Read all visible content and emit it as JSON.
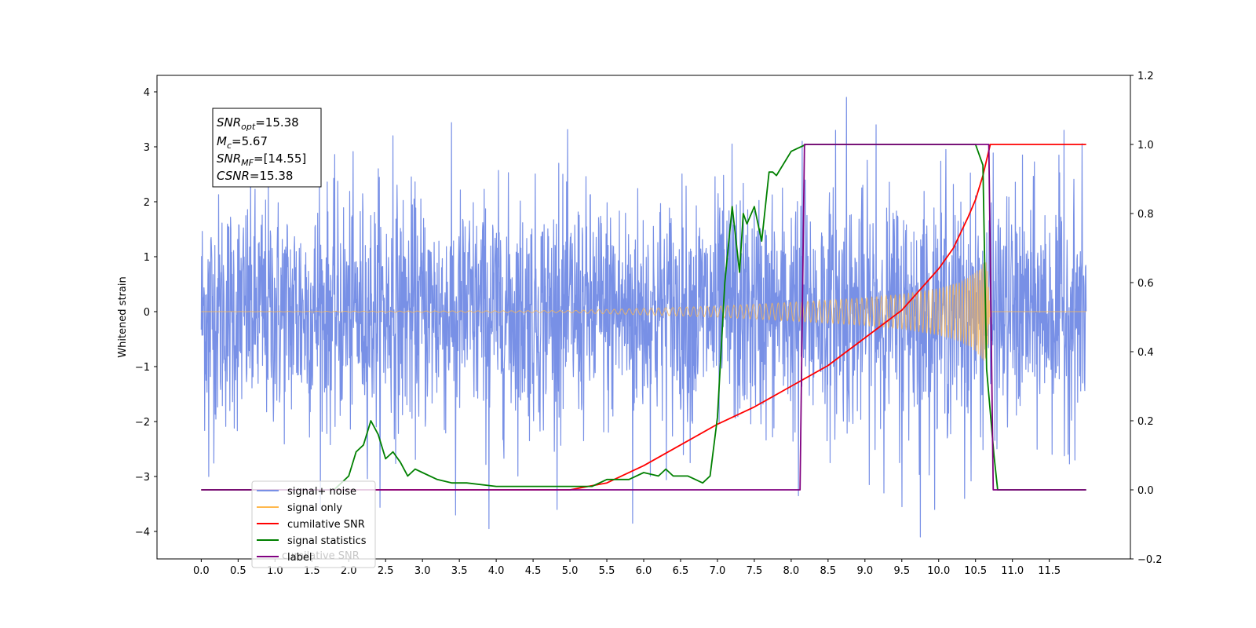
{
  "chart_data": {
    "type": "line",
    "title": "",
    "xlabel": "",
    "ylabel": "Whitened strain",
    "y2label": "",
    "xlim": [
      -0.6,
      12.6
    ],
    "ylim": [
      -4.5,
      4.3
    ],
    "y2lim": [
      -0.2,
      1.2
    ],
    "xticks": [
      "0.0",
      "0.5",
      "1.0",
      "1.5",
      "2.0",
      "2.5",
      "3.0",
      "3.5",
      "4.0",
      "4.5",
      "5.0",
      "5.5",
      "6.0",
      "6.5",
      "7.0",
      "7.5",
      "8.0",
      "8.5",
      "9.0",
      "9.5",
      "10.0",
      "10.5",
      "11.0",
      "11.5"
    ],
    "yticks": [
      "4",
      "3",
      "2",
      "1",
      "0",
      "−1",
      "−2",
      "−3",
      "−4"
    ],
    "y2ticks": [
      "1.2",
      "1.0",
      "0.8",
      "0.6",
      "0.4",
      "0.2",
      "0.0",
      "−0.2"
    ],
    "grid": false,
    "legend_position": "lower-left",
    "annotation": {
      "lines": [
        {
          "main": "SNR",
          "sub": "opt",
          "rest": "=15.38"
        },
        {
          "main": "M",
          "sub": "c",
          "rest": "=5.67"
        },
        {
          "main": "SNR",
          "sub": "MF",
          "rest": "=[14.55]"
        },
        {
          "main": "CSNR",
          "sub": "",
          "rest": "=15.38"
        }
      ]
    },
    "series": [
      {
        "name": "signal+ noise",
        "axis": "left",
        "color": "#7890e6",
        "kind": "noise",
        "x_range": [
          0.0,
          12.0
        ],
        "sigma": 1.05,
        "spikes": [
          [
            1.6,
            2.4
          ],
          [
            2.4,
            2.6
          ],
          [
            2.6,
            3.2
          ],
          [
            3.45,
            3.6
          ],
          [
            3.9,
            3.55
          ],
          [
            4.85,
            2.7
          ],
          [
            7.2,
            3.05
          ],
          [
            8.15,
            3.1
          ],
          [
            8.6,
            3.3
          ],
          [
            8.75,
            3.9
          ],
          [
            9.15,
            3.4
          ],
          [
            10.1,
            2.95
          ],
          [
            11.7,
            3.3
          ],
          [
            3.9,
            -3.95
          ],
          [
            3.45,
            -3.7
          ],
          [
            5.85,
            -3.85
          ],
          [
            8.1,
            -3.35
          ],
          [
            9.5,
            -3.55
          ],
          [
            9.75,
            -4.1
          ],
          [
            10.35,
            -3.4
          ],
          [
            0.1,
            -3.0
          ]
        ]
      },
      {
        "name": "signal only",
        "axis": "left",
        "color": "#ffb84d",
        "kind": "chirp",
        "x_range": [
          0.0,
          12.0
        ],
        "merger_time": 10.7,
        "envelope": [
          [
            0.0,
            0.0
          ],
          [
            5.0,
            0.02
          ],
          [
            6.0,
            0.06
          ],
          [
            7.0,
            0.1
          ],
          [
            8.0,
            0.17
          ],
          [
            9.0,
            0.25
          ],
          [
            9.5,
            0.32
          ],
          [
            10.0,
            0.43
          ],
          [
            10.3,
            0.55
          ],
          [
            10.5,
            0.72
          ],
          [
            10.65,
            0.95
          ],
          [
            10.7,
            0.0
          ],
          [
            12.0,
            0.0
          ]
        ]
      },
      {
        "name": "cumilative SNR",
        "axis": "right",
        "color": "#ff0000",
        "x": [
          0.0,
          5.0,
          5.5,
          6.0,
          6.5,
          7.0,
          7.5,
          8.0,
          8.5,
          9.0,
          9.5,
          10.0,
          10.2,
          10.4,
          10.5,
          10.6,
          10.7,
          11.0,
          11.5,
          12.0
        ],
        "y": [
          0.0,
          0.0,
          0.02,
          0.07,
          0.13,
          0.19,
          0.24,
          0.3,
          0.36,
          0.44,
          0.52,
          0.64,
          0.7,
          0.79,
          0.84,
          0.91,
          1.0,
          1.0,
          1.0,
          1.0
        ]
      },
      {
        "name": "signal statistics",
        "axis": "right",
        "color": "#008000",
        "x": [
          0.0,
          1.8,
          2.0,
          2.1,
          2.2,
          2.3,
          2.4,
          2.5,
          2.6,
          2.7,
          2.8,
          2.9,
          3.0,
          3.2,
          3.4,
          3.6,
          4.0,
          4.5,
          5.0,
          5.3,
          5.5,
          5.7,
          5.8,
          6.0,
          6.2,
          6.3,
          6.4,
          6.5,
          6.6,
          6.8,
          6.9,
          7.0,
          7.1,
          7.2,
          7.3,
          7.35,
          7.4,
          7.5,
          7.6,
          7.7,
          7.75,
          7.8,
          8.0,
          8.2,
          8.4,
          8.6,
          9.0,
          9.5,
          10.0,
          10.3,
          10.5,
          10.6,
          10.65,
          10.75,
          10.8,
          11.0,
          12.0
        ],
        "y": [
          0.0,
          0.0,
          0.04,
          0.11,
          0.13,
          0.2,
          0.16,
          0.09,
          0.11,
          0.08,
          0.04,
          0.06,
          0.05,
          0.03,
          0.02,
          0.02,
          0.01,
          0.01,
          0.01,
          0.01,
          0.03,
          0.03,
          0.03,
          0.05,
          0.04,
          0.06,
          0.04,
          0.04,
          0.04,
          0.02,
          0.04,
          0.21,
          0.6,
          0.82,
          0.63,
          0.8,
          0.77,
          0.82,
          0.72,
          0.92,
          0.92,
          0.91,
          0.98,
          1.0,
          1.0,
          1.0,
          1.0,
          1.0,
          1.0,
          1.0,
          1.0,
          0.94,
          0.35,
          0.1,
          0.0,
          0.0,
          0.0
        ]
      },
      {
        "name": "label",
        "axis": "right",
        "color": "#800080",
        "x": [
          0.0,
          8.12,
          8.18,
          10.68,
          10.74,
          12.0
        ],
        "y": [
          0.0,
          0.0,
          1.0,
          1.0,
          0.0,
          0.0
        ]
      }
    ],
    "legend_overlap_text": "cumilative SNR"
  }
}
